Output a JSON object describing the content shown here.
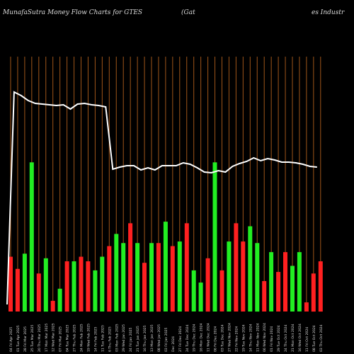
{
  "header": {
    "title_left": "MunafaSutra  Money Flow  Charts for GTES",
    "title_mid": "(Gat",
    "title_right": "es Industr"
  },
  "colors": {
    "background": "#000000",
    "grid_line": "#a0561a",
    "up_bar": "#22ee22",
    "down_bar": "#ff2020",
    "price_line": "#ffffff",
    "tick_text": "#dddddd"
  },
  "chart_data": {
    "type": "bar",
    "title": "MunafaSutra  Money Flow  Charts for GTES  (Gates Industr",
    "xlabel": "",
    "ylabel": "",
    "grid": true,
    "categories": [
      "04 Fri Apr 2025",
      "01 Tue Apr 2025",
      "28 Fri Mar 2025",
      "25 Tue Mar 2025",
      "20 Thu Mar 2025",
      "17 Mon Mar 2025",
      "12 Wed Mar 2025",
      "07 Fri Mar 2025",
      "04 Tue Mar 2025",
      "27 Thu Feb 2025",
      "24 Mon Feb 2025",
      "19 Wed Feb 2025",
      "14 Fri Feb 2025",
      "11 Tue Feb 2025",
      "6 Thu Feb 2025",
      "03 Mon Feb 2025",
      "29 Wed Jan 2025",
      "24 Fri Jan 2025",
      "21 Tue Jan 2025",
      "16 Thu Jan 2025",
      "13 Mon Jan 2025",
      "08 Wed Jan 2025",
      "03 Fri Jan 2025",
      "Dec 2024",
      "27 Fri Dec 2024",
      "24 Tue Dec 2024",
      "19 Thu Dec 2024",
      "16 Mon Dec 2024",
      "11 Wed Dec 2024",
      "06 Fri Dec 2024",
      "03 Tue Dec 2024",
      "27 Wed Nov 2024",
      "22 Fri Nov 2024",
      "19 Tue Nov 2024",
      "14 Thu Nov 2024",
      "11 Mon Nov 2024",
      "06 Wed Nov 2024",
      "01 Fri Nov 2024",
      "29 Tue Oct 2024",
      "24 Thu Oct 2024",
      "21 Mon Oct 2024",
      "16 Wed Oct 2024",
      "11 Fri Oct 2024",
      "08 Tue Oct 2024",
      "03 Thu Oct 2024"
    ],
    "bar_values": [
      36,
      28,
      38,
      98,
      25,
      35,
      7,
      15,
      33,
      33,
      36,
      33,
      27,
      36,
      43,
      51,
      45,
      58,
      45,
      32,
      45,
      45,
      59,
      43,
      46,
      58,
      27,
      19,
      35,
      98,
      27,
      46,
      58,
      46,
      56,
      45,
      20,
      39,
      26,
      39,
      30,
      39,
      6,
      25,
      33
    ],
    "bar_colors": [
      "down",
      "down",
      "up",
      "up",
      "down",
      "up",
      "down",
      "up",
      "down",
      "up",
      "down",
      "down",
      "up",
      "up",
      "down",
      "up",
      "up",
      "down",
      "up",
      "down",
      "up",
      "down",
      "up",
      "down",
      "up",
      "down",
      "up",
      "up",
      "down",
      "up",
      "down",
      "up",
      "down",
      "down",
      "up",
      "up",
      "down",
      "up",
      "down",
      "down",
      "up",
      "up",
      "down",
      "down",
      "down"
    ],
    "price_line": [
      10,
      310,
      305,
      298,
      294,
      293,
      292,
      291,
      292,
      286,
      293,
      294,
      292,
      291,
      289,
      201,
      204,
      206,
      206,
      200,
      203,
      200,
      206,
      206,
      206,
      210,
      208,
      203,
      197,
      196,
      199,
      197,
      205,
      209,
      212,
      217,
      213,
      216,
      214,
      211,
      211,
      210,
      208,
      205,
      204
    ]
  }
}
